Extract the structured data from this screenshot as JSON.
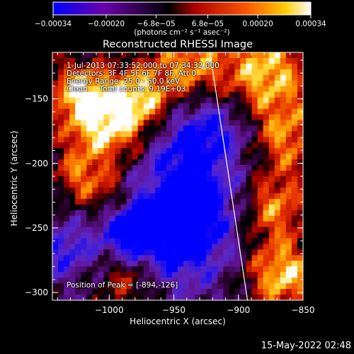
{
  "chart_data": {
    "type": "heatmap",
    "title": "Reconstructed RHESSI Image",
    "xlabel": "Heliocentric X (arcsec)",
    "ylabel": "Heliocentric Y (arcsec)",
    "xlim": [
      -1044,
      -850
    ],
    "ylim": [
      -306,
      -114
    ],
    "x_ticks": [
      -1000,
      -950,
      -900,
      -850
    ],
    "x_tick_labels": [
      "−1000",
      "−950",
      "−900",
      "−850"
    ],
    "y_ticks": [
      -300,
      -250,
      -200,
      -150
    ],
    "y_tick_labels": [
      "−300",
      "−250",
      "−200",
      "−150"
    ],
    "colorbar": {
      "range": [
        -0.00034,
        0.00034
      ],
      "tick_labels": [
        "−0.00034",
        "−0.00020",
        "−6.8e−05",
        "6.8e−05",
        "0.00020",
        "0.00034"
      ],
      "unit_label": "(photons cm⁻² s⁻¹ asec⁻²)",
      "colormap": [
        "#0000ff",
        "#6a00aa",
        "#000000",
        "#cc1100",
        "#ff8800",
        "#ffffff"
      ]
    },
    "annotations": [
      "1-Jul-2013 07:33:52.000 to 07:34:32.000",
      "Detectors: 3F 4F 5F 6F 7F 8F, Att 0",
      "Energy Range: 25.0 - 50.0 keV",
      "Clean     Total counts: 9.19E+03"
    ],
    "peak_label": "Position of Peak = [-894,-126]",
    "limb": {
      "x": [
        -922,
        -893
      ],
      "y": [
        -114,
        -306
      ]
    },
    "grid": false,
    "legend": "colorbar-top"
  },
  "footer": {
    "timestamp": "15-May-2022 02:48"
  }
}
